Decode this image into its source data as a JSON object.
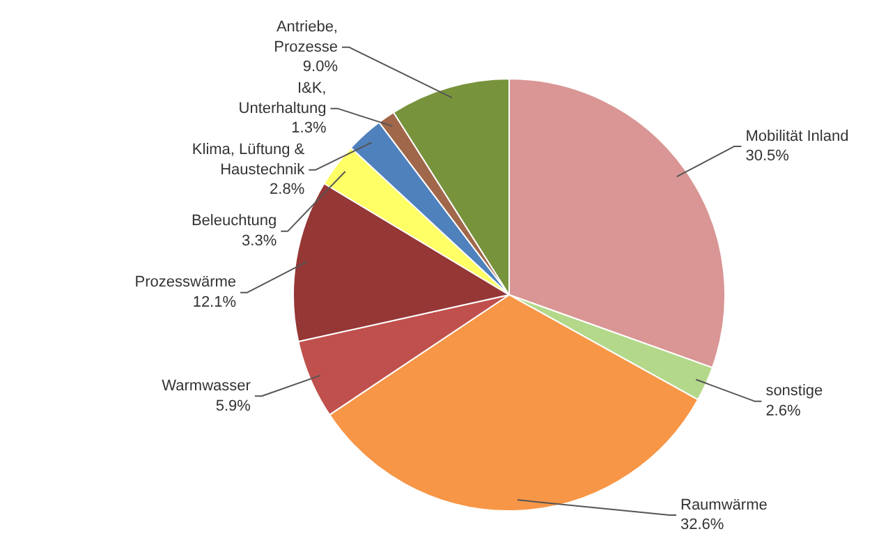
{
  "chart_data": {
    "type": "pie",
    "categories": [
      "Mobilität Inland",
      "sonstige",
      "Raumwärme",
      "Warmwasser",
      "Prozesswärme",
      "Beleuchtung",
      "Klima, Lüftung & Haustechnik",
      "I&K, Unterhaltung",
      "Antriebe, Prozesse"
    ],
    "values": [
      30.5,
      2.6,
      32.6,
      5.9,
      12.1,
      3.3,
      2.8,
      1.3,
      9.0
    ],
    "colors": [
      "#d99694",
      "#b3d88a",
      "#f79646",
      "#c0504d",
      "#953735",
      "#ffff66",
      "#4f81bd",
      "#a0674a",
      "#77933c"
    ],
    "value_labels": [
      "30.5%",
      "2.6%",
      "32.6%",
      "5.9%",
      "12.1%",
      "3.3%",
      "2.8%",
      "1.3%",
      "9.0%"
    ]
  }
}
